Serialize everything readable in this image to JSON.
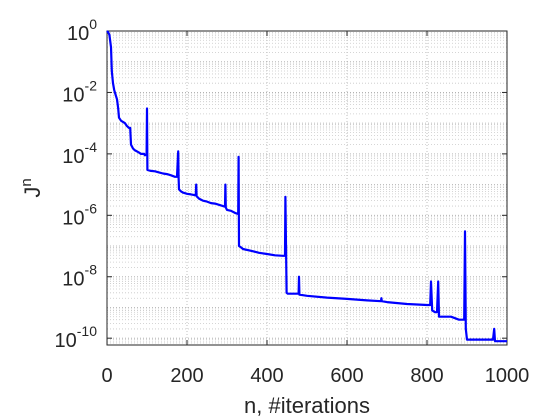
{
  "chart_data": {
    "type": "line",
    "title": "",
    "xlabel": "n, #iterations",
    "ylabel": {
      "base": "J",
      "superscript": "n"
    },
    "x_axis": {
      "lim": [
        0,
        1000
      ],
      "ticks": [
        0,
        200,
        400,
        600,
        800,
        1000
      ],
      "tick_labels": [
        "0",
        "200",
        "400",
        "600",
        "800",
        "1000"
      ]
    },
    "y_axis": {
      "scale": "log",
      "lim": [
        6e-11,
        1
      ],
      "ticks": [
        1e-10,
        1e-08,
        1e-06,
        0.0001,
        0.01,
        1
      ],
      "tick_labels": [
        {
          "base": "10",
          "exp": "-10"
        },
        {
          "base": "10",
          "exp": "-8"
        },
        {
          "base": "10",
          "exp": "-6"
        },
        {
          "base": "10",
          "exp": "-4"
        },
        {
          "base": "10",
          "exp": "-2"
        },
        {
          "base": "10",
          "exp": "0"
        }
      ]
    },
    "grid": {
      "major": true,
      "minor": true,
      "style": "dotted"
    },
    "series": [
      {
        "color": "#0000ff",
        "points": [
          [
            0,
            1.0
          ],
          [
            3,
            0.9
          ],
          [
            6,
            0.75
          ],
          [
            10,
            0.3
          ],
          [
            12,
            0.05
          ],
          [
            15,
            0.02
          ],
          [
            18,
            0.012
          ],
          [
            22,
            0.008
          ],
          [
            25,
            0.006
          ],
          [
            28,
            0.003
          ],
          [
            30,
            0.0015
          ],
          [
            35,
            0.0012
          ],
          [
            40,
            0.0011
          ],
          [
            45,
            0.001
          ],
          [
            50,
            0.0008
          ],
          [
            55,
            0.0007
          ],
          [
            58,
            0.0007
          ],
          [
            60,
            0.0002
          ],
          [
            65,
            0.00015
          ],
          [
            70,
            0.00013
          ],
          [
            75,
            0.00012
          ],
          [
            80,
            0.00011
          ],
          [
            85,
            0.0001
          ],
          [
            90,
            0.0001
          ],
          [
            93,
            0.0001
          ],
          [
            95,
            9e-05
          ],
          [
            99,
            9.5e-05
          ],
          [
            100,
            0.003
          ],
          [
            101,
            3e-05
          ],
          [
            110,
            2.8e-05
          ],
          [
            120,
            2.7e-05
          ],
          [
            130,
            2.5e-05
          ],
          [
            140,
            2.3e-05
          ],
          [
            150,
            2.2e-05
          ],
          [
            160,
            2e-05
          ],
          [
            170,
            1.8e-05
          ],
          [
            175,
            1.8e-05
          ],
          [
            178,
            0.00012
          ],
          [
            179,
            1.7e-05
          ],
          [
            180,
            7e-06
          ],
          [
            185,
            6e-06
          ],
          [
            190,
            5.5e-06
          ],
          [
            200,
            5e-06
          ],
          [
            210,
            4.8e-06
          ],
          [
            220,
            4.5e-06
          ],
          [
            222,
            4.5e-06
          ],
          [
            223,
            1e-05
          ],
          [
            224,
            4.2e-06
          ],
          [
            230,
            3.5e-06
          ],
          [
            240,
            3e-06
          ],
          [
            250,
            2.8e-06
          ],
          [
            260,
            2.5e-06
          ],
          [
            270,
            2.4e-06
          ],
          [
            280,
            2.2e-06
          ],
          [
            290,
            2e-06
          ],
          [
            295,
            1.9e-06
          ],
          [
            296,
            1e-05
          ],
          [
            297,
            1.8e-06
          ],
          [
            300,
            1.5e-06
          ],
          [
            310,
            1.4e-06
          ],
          [
            320,
            1.2e-06
          ],
          [
            328,
            1.1e-06
          ],
          [
            329,
            8e-05
          ],
          [
            330,
            1e-07
          ],
          [
            335,
            9e-08
          ],
          [
            340,
            8e-08
          ],
          [
            360,
            7e-08
          ],
          [
            380,
            6e-08
          ],
          [
            400,
            5.5e-08
          ],
          [
            420,
            5e-08
          ],
          [
            440,
            4.8e-08
          ],
          [
            445,
            4.8e-08
          ],
          [
            446,
            4e-06
          ],
          [
            449,
            3e-09
          ],
          [
            452,
            2.8e-09
          ],
          [
            460,
            2.8e-09
          ],
          [
            470,
            2.8e-09
          ],
          [
            479,
            2.8e-09
          ],
          [
            480,
            1e-08
          ],
          [
            481,
            2.6e-09
          ],
          [
            490,
            2.5e-09
          ],
          [
            500,
            2.4e-09
          ],
          [
            550,
            2.1e-09
          ],
          [
            600,
            1.9e-09
          ],
          [
            650,
            1.7e-09
          ],
          [
            685,
            1.6e-09
          ],
          [
            686,
            2e-09
          ],
          [
            687,
            1.6e-09
          ],
          [
            700,
            1.5e-09
          ],
          [
            750,
            1.3e-09
          ],
          [
            800,
            1.2e-09
          ],
          [
            808,
            1.2e-09
          ],
          [
            810,
            7e-09
          ],
          [
            813,
            8e-10
          ],
          [
            820,
            7e-10
          ],
          [
            825,
            7e-10
          ],
          [
            828,
            7e-09
          ],
          [
            830,
            5e-10
          ],
          [
            840,
            5e-10
          ],
          [
            860,
            5e-10
          ],
          [
            880,
            4e-10
          ],
          [
            890,
            4e-10
          ],
          [
            893,
            4e-10
          ],
          [
            895,
            3e-07
          ],
          [
            897,
            2e-10
          ],
          [
            900,
            9e-11
          ],
          [
            910,
            9e-11
          ],
          [
            930,
            9e-11
          ],
          [
            950,
            9e-11
          ],
          [
            965,
            9e-11
          ],
          [
            968,
            2e-10
          ],
          [
            970,
            8e-11
          ],
          [
            980,
            8e-11
          ],
          [
            1000,
            8e-11
          ]
        ]
      }
    ]
  }
}
